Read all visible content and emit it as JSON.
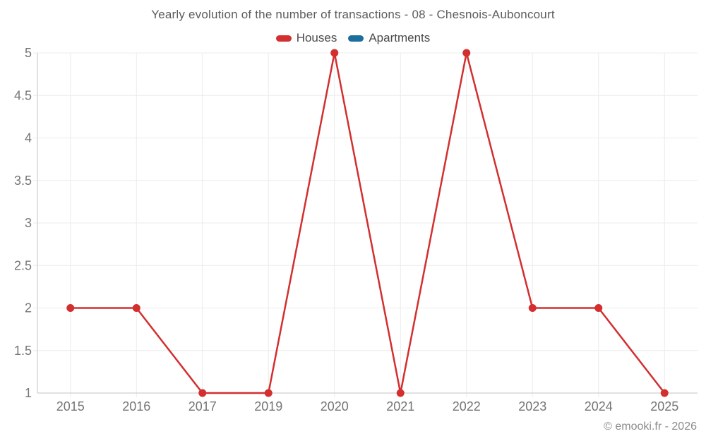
{
  "title": "Yearly evolution of the number of transactions - 08 - Chesnois-Auboncourt",
  "footer": "© emooki.fr - 2026",
  "colors": {
    "houses": "#d32f2f",
    "apartments": "#1c6e9c",
    "grid": "#ececec",
    "axis": "#c6c6c6",
    "tick_text": "#757575",
    "title_text": "#5c5c5c",
    "legend_text": "#4a4a4a",
    "footer_text": "#8c8c8c",
    "background": "#ffffff"
  },
  "legend": {
    "items": [
      {
        "label": "Houses",
        "color": "#d32f2f"
      },
      {
        "label": "Apartments",
        "color": "#1c6e9c"
      }
    ]
  },
  "chart_data": {
    "type": "line",
    "title": "Yearly evolution of the number of transactions - 08 - Chesnois-Auboncourt",
    "categories": [
      "2015",
      "2016",
      "2017",
      "2019",
      "2020",
      "2021",
      "2022",
      "2023",
      "2024",
      "2025"
    ],
    "series": [
      {
        "name": "Houses",
        "color": "#d32f2f",
        "values": [
          2,
          2,
          1,
          1,
          5,
          1,
          5,
          2,
          2,
          1
        ]
      },
      {
        "name": "Apartments",
        "color": "#1c6e9c",
        "values": []
      }
    ],
    "xlabel": "",
    "ylabel": "",
    "ylim": [
      1,
      5
    ],
    "y_ticks": [
      "5",
      "4.5",
      "4",
      "3.5",
      "3",
      "2.5",
      "2",
      "1.5",
      "1"
    ],
    "grid": true,
    "legend_position": "top",
    "marker": "circle"
  }
}
